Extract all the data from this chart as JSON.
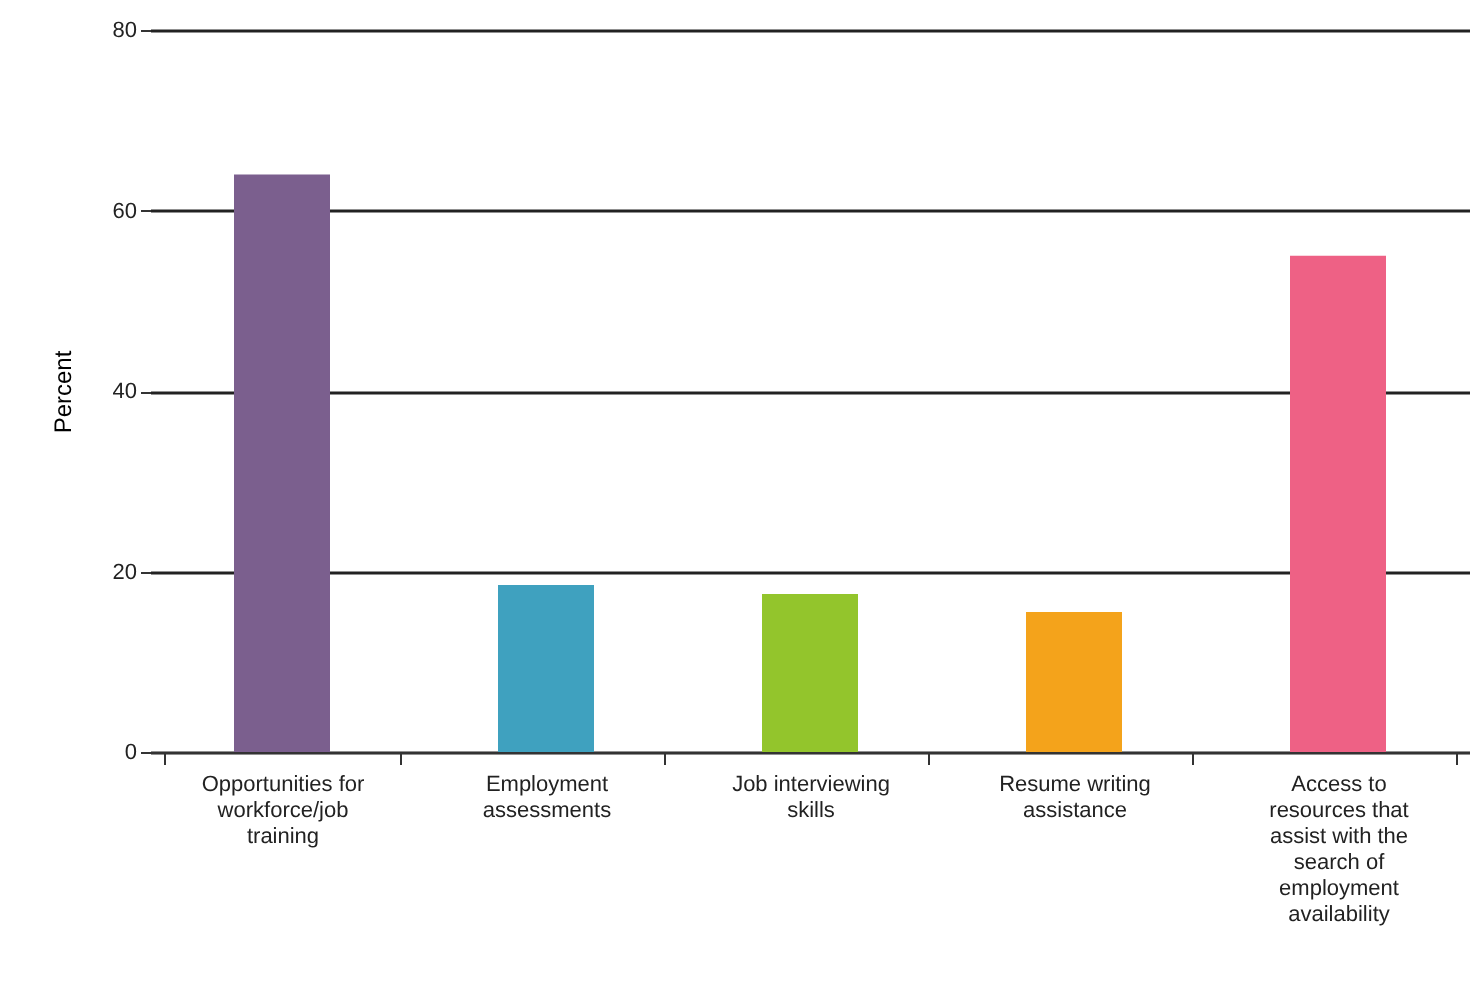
{
  "chart_data": {
    "type": "bar",
    "ylabel": "Percent",
    "categories": [
      "Opportunities for workforce/job training",
      "Employment assessments",
      "Job interviewing skills",
      "Resume writing assistance",
      "Access to resources that assist with the search of employment availability"
    ],
    "values": [
      64,
      18.5,
      17.5,
      15.5,
      55
    ],
    "colors": [
      "#7b5f8e",
      "#3fa1bf",
      "#93c52c",
      "#f4a31b",
      "#ee6185"
    ],
    "ylim": [
      0,
      80
    ],
    "yticks": [
      0,
      20,
      40,
      60,
      80
    ],
    "grid": "y"
  }
}
